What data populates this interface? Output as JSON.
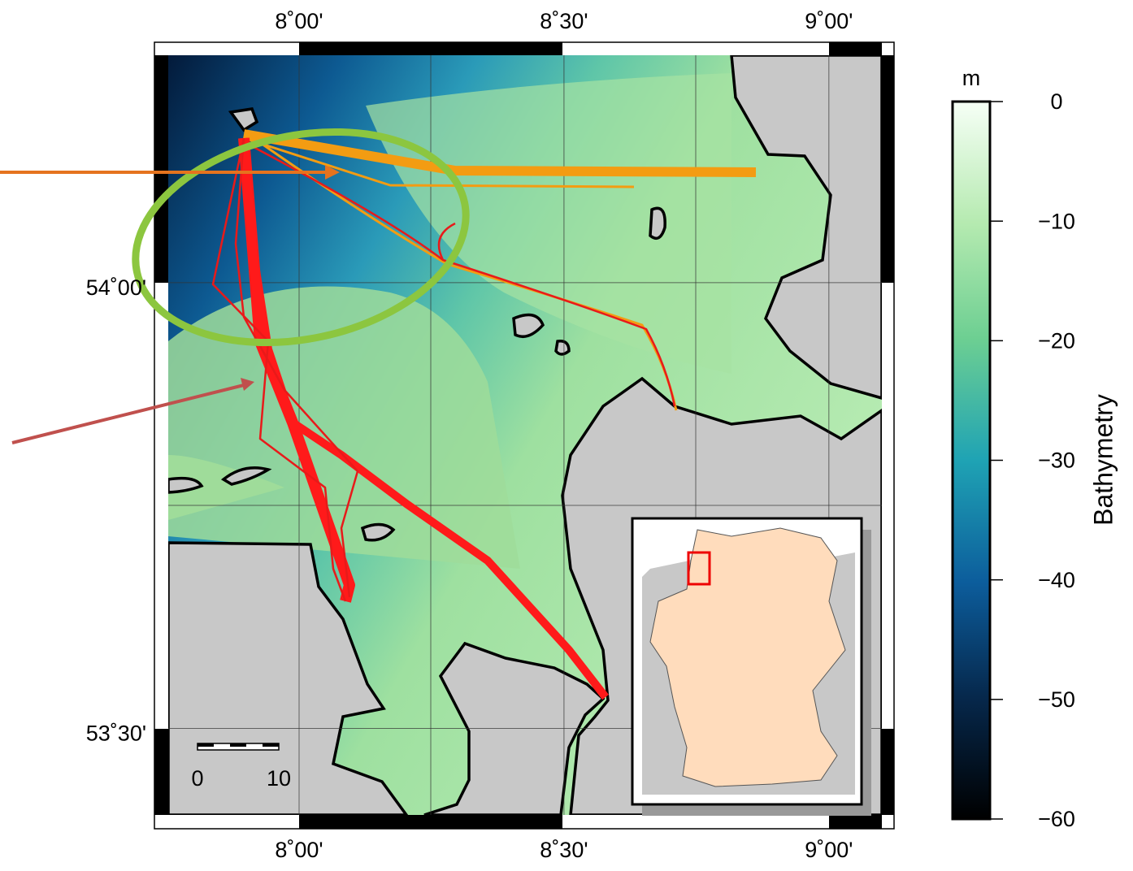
{
  "map": {
    "lon_range": [
      7.753,
      9.1
    ],
    "lat_range": [
      53.403,
      54.255
    ],
    "lon_ticks": [
      {
        "value": 8,
        "label": "8˚00'"
      },
      {
        "value": 8.5,
        "label": "8˚30'"
      },
      {
        "value": 9,
        "label": "9˚00'"
      }
    ],
    "lat_ticks": [
      {
        "value": 54,
        "label": "54˚00'"
      },
      {
        "value": 53.5,
        "label": "53˚30'"
      }
    ],
    "colorbar": {
      "title": "Bathymetry",
      "unit": "m",
      "range": [
        -60,
        0
      ],
      "ticks": [
        0,
        {
          "value": -10,
          "label": "−10"
        },
        {
          "value": -20,
          "label": "−20"
        },
        {
          "value": -30,
          "label": "−30"
        },
        {
          "value": -40,
          "label": "−40"
        },
        {
          "value": -50,
          "label": "−50"
        },
        {
          "value": -60,
          "label": "−60"
        }
      ]
    },
    "scale_bar": {
      "labels": [
        "0",
        "10"
      ]
    }
  }
}
